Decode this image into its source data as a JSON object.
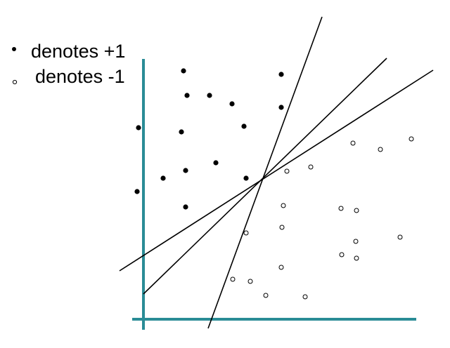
{
  "legend": {
    "positive_label": "denotes +1",
    "negative_label": "denotes -1"
  },
  "colors": {
    "axis": "#2a8c96",
    "point_positive": "#000000",
    "point_negative": "#000000",
    "line": "#000000"
  },
  "icons": {
    "positive_marker": "filled-dot-icon",
    "negative_marker": "hollow-circle-icon"
  }
}
